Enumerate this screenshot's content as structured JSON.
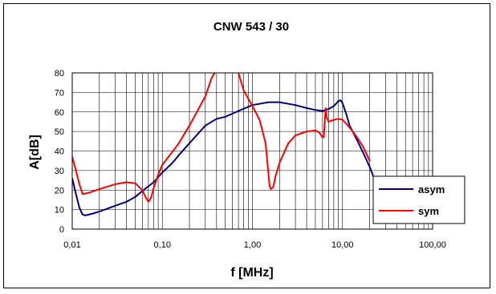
{
  "chart_data": {
    "type": "line",
    "title": "CNW 543 / 30",
    "xlabel": "f [MHz]",
    "ylabel": "A[dB]",
    "xscale": "log",
    "xlim": [
      0.01,
      100
    ],
    "ylim": [
      0,
      80
    ],
    "xticks": [
      "0,01",
      "0,10",
      "1,00",
      "10,00",
      "100,00"
    ],
    "yticks": [
      "0",
      "10",
      "20",
      "30",
      "40",
      "50",
      "60",
      "70",
      "80"
    ],
    "grid": true,
    "legend": "right",
    "series": [
      {
        "name": "asym",
        "color": "#000080",
        "points": [
          [
            0.01,
            26
          ],
          [
            0.011,
            18
          ],
          [
            0.012,
            11
          ],
          [
            0.013,
            7.5
          ],
          [
            0.014,
            7
          ],
          [
            0.017,
            8
          ],
          [
            0.02,
            9
          ],
          [
            0.03,
            12
          ],
          [
            0.04,
            14
          ],
          [
            0.05,
            16.5
          ],
          [
            0.06,
            19.5
          ],
          [
            0.08,
            24
          ],
          [
            0.1,
            29
          ],
          [
            0.13,
            34
          ],
          [
            0.15,
            37.5
          ],
          [
            0.2,
            44
          ],
          [
            0.3,
            53
          ],
          [
            0.4,
            56.5
          ],
          [
            0.5,
            57.5
          ],
          [
            0.7,
            60.5
          ],
          [
            1.0,
            63.5
          ],
          [
            1.5,
            65
          ],
          [
            2.0,
            65
          ],
          [
            3.0,
            63.5
          ],
          [
            4.0,
            62
          ],
          [
            5.0,
            61
          ],
          [
            6.0,
            60.5
          ],
          [
            7.0,
            61.5
          ],
          [
            8.0,
            63
          ],
          [
            9.0,
            65.5
          ],
          [
            9.5,
            66
          ],
          [
            10.0,
            64.5
          ],
          [
            11.0,
            59
          ],
          [
            12.0,
            53
          ],
          [
            14.0,
            47
          ],
          [
            17.0,
            39
          ],
          [
            20.0,
            32
          ],
          [
            22.0,
            27
          ]
        ]
      },
      {
        "name": "sym",
        "color": "#ff0000",
        "points": [
          [
            0.01,
            37
          ],
          [
            0.011,
            30
          ],
          [
            0.012,
            23
          ],
          [
            0.013,
            18
          ],
          [
            0.015,
            18.5
          ],
          [
            0.02,
            20.5
          ],
          [
            0.03,
            23
          ],
          [
            0.04,
            24
          ],
          [
            0.05,
            23.5
          ],
          [
            0.06,
            20
          ],
          [
            0.065,
            16.5
          ],
          [
            0.07,
            14
          ],
          [
            0.075,
            16
          ],
          [
            0.08,
            21
          ],
          [
            0.09,
            28
          ],
          [
            0.1,
            33
          ],
          [
            0.15,
            43.5
          ],
          [
            0.2,
            53
          ],
          [
            0.3,
            68
          ],
          [
            0.35,
            77
          ],
          [
            0.38,
            80
          ],
          [
            null,
            null
          ],
          [
            0.7,
            80
          ],
          [
            0.8,
            71
          ],
          [
            1.0,
            63
          ],
          [
            1.2,
            56
          ],
          [
            1.4,
            44
          ],
          [
            1.5,
            29
          ],
          [
            1.55,
            22
          ],
          [
            1.6,
            20.5
          ],
          [
            1.7,
            21.5
          ],
          [
            1.8,
            27
          ],
          [
            2.0,
            34
          ],
          [
            2.5,
            44
          ],
          [
            3.0,
            48
          ],
          [
            4.0,
            50
          ],
          [
            5.0,
            50.5
          ],
          [
            5.5,
            49.5
          ],
          [
            6.0,
            47
          ],
          [
            6.2,
            47
          ],
          [
            6.5,
            62
          ],
          [
            6.7,
            57
          ],
          [
            7.0,
            55
          ],
          [
            8.0,
            56
          ],
          [
            9.0,
            56.5
          ],
          [
            10.0,
            56
          ],
          [
            11.0,
            54
          ],
          [
            13.0,
            50
          ],
          [
            15.0,
            46
          ],
          [
            17.0,
            42
          ],
          [
            20.0,
            35
          ]
        ]
      }
    ]
  }
}
